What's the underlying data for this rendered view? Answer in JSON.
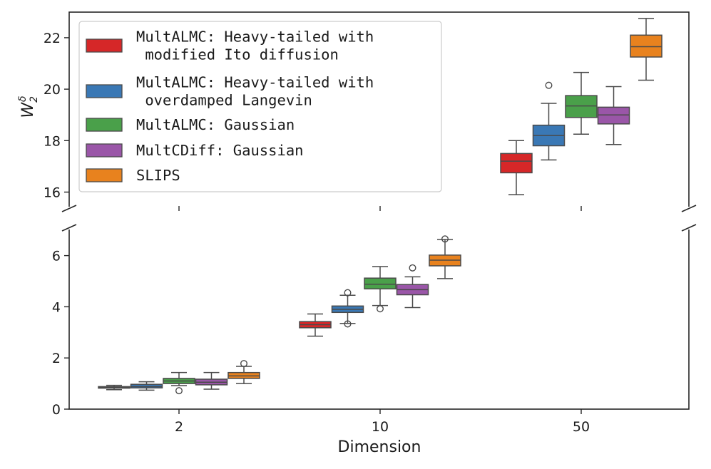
{
  "chart_data": {
    "type": "boxplot",
    "xlabel": "Dimension",
    "ylabel_main": "W",
    "ylabel_sub": "2",
    "ylabel_sup": "δ",
    "categories": [
      "2",
      "10",
      "50"
    ],
    "broken_axis": {
      "upper_ylim": [
        15.5,
        23.0
      ],
      "upper_ticks": [
        "16",
        "18",
        "20",
        "22"
      ],
      "lower_ylim": [
        0,
        7.2
      ],
      "lower_ticks": [
        "0",
        "2",
        "4",
        "6"
      ]
    },
    "legend": {
      "position": "top-left",
      "entries": [
        {
          "lines": [
            "MultALMC: Heavy-tailed with",
            " modified Ito diffusion"
          ]
        },
        {
          "lines": [
            "MultALMC: Heavy-tailed with",
            " overdamped Langevin"
          ]
        },
        {
          "lines": [
            "MultALMC: Gaussian"
          ]
        },
        {
          "lines": [
            "MultCDiff: Gaussian"
          ]
        },
        {
          "lines": [
            "SLIPS"
          ]
        }
      ]
    },
    "series": [
      {
        "name": "MultALMC: Heavy-tailed with modified Ito diffusion",
        "color": "#d62728",
        "boxes": [
          {
            "category": "2",
            "whislo": 0.76,
            "q1": 0.82,
            "med": 0.85,
            "q3": 0.88,
            "whishi": 0.93,
            "fliers": []
          },
          {
            "category": "10",
            "whislo": 2.85,
            "q1": 3.18,
            "med": 3.3,
            "q3": 3.42,
            "whishi": 3.72,
            "fliers": []
          },
          {
            "category": "50",
            "whislo": 15.9,
            "q1": 16.75,
            "med": 17.2,
            "q3": 17.5,
            "whishi": 18.0,
            "fliers": []
          }
        ]
      },
      {
        "name": "MultALMC: Heavy-tailed with overdamped Langevin",
        "color": "#3a78b5",
        "boxes": [
          {
            "category": "2",
            "whislo": 0.74,
            "q1": 0.83,
            "med": 0.88,
            "q3": 0.97,
            "whishi": 1.07,
            "fliers": []
          },
          {
            "category": "10",
            "whislo": 3.35,
            "q1": 3.78,
            "med": 3.9,
            "q3": 4.03,
            "whishi": 4.45,
            "fliers": [
              4.55,
              3.33
            ]
          },
          {
            "category": "50",
            "whislo": 17.25,
            "q1": 17.8,
            "med": 18.2,
            "q3": 18.6,
            "whishi": 19.45,
            "fliers": [
              20.15
            ]
          }
        ]
      },
      {
        "name": "MultALMC: Gaussian",
        "color": "#4aa04a",
        "boxes": [
          {
            "category": "2",
            "whislo": 0.92,
            "q1": 1.0,
            "med": 1.1,
            "q3": 1.2,
            "whishi": 1.43,
            "fliers": [
              0.72
            ]
          },
          {
            "category": "10",
            "whislo": 4.05,
            "q1": 4.7,
            "med": 4.88,
            "q3": 5.12,
            "whishi": 5.57,
            "fliers": [
              3.92
            ]
          },
          {
            "category": "50",
            "whislo": 18.25,
            "q1": 18.9,
            "med": 19.35,
            "q3": 19.75,
            "whishi": 20.65,
            "fliers": []
          }
        ]
      },
      {
        "name": "MultCDiff: Gaussian",
        "color": "#9a56a8",
        "boxes": [
          {
            "category": "2",
            "whislo": 0.78,
            "q1": 0.95,
            "med": 1.05,
            "q3": 1.17,
            "whishi": 1.43,
            "fliers": []
          },
          {
            "category": "10",
            "whislo": 3.97,
            "q1": 4.47,
            "med": 4.67,
            "q3": 4.87,
            "whishi": 5.17,
            "fliers": [
              5.52
            ]
          },
          {
            "category": "50",
            "whislo": 17.85,
            "q1": 18.65,
            "med": 19.0,
            "q3": 19.3,
            "whishi": 20.1,
            "fliers": []
          }
        ]
      },
      {
        "name": "SLIPS",
        "color": "#e8821e",
        "boxes": [
          {
            "category": "2",
            "whislo": 1.0,
            "q1": 1.2,
            "med": 1.3,
            "q3": 1.43,
            "whishi": 1.67,
            "fliers": [
              1.78
            ]
          },
          {
            "category": "10",
            "whislo": 5.1,
            "q1": 5.6,
            "med": 5.82,
            "q3": 6.02,
            "whishi": 6.63,
            "fliers": [
              6.65
            ]
          },
          {
            "category": "50",
            "whislo": 20.35,
            "q1": 21.25,
            "med": 21.65,
            "q3": 22.1,
            "whishi": 22.75,
            "fliers": []
          }
        ]
      }
    ]
  }
}
